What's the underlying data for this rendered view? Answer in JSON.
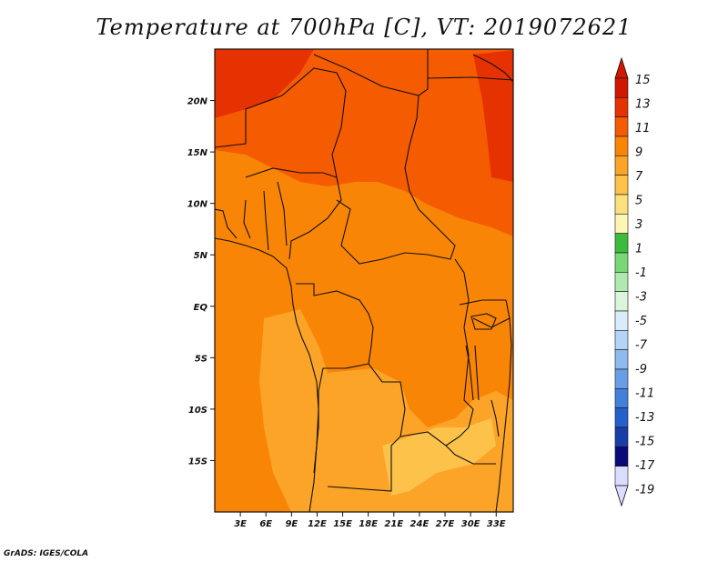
{
  "title": "Temperature at 700hPa [C], VT: 2019072621",
  "credit": "GrADS: IGES/COLA",
  "map": {
    "lon_range": [
      0,
      35
    ],
    "lat_range": [
      -20,
      25
    ],
    "lat_ticks": [
      {
        "value": 20,
        "label": "20N"
      },
      {
        "value": 15,
        "label": "15N"
      },
      {
        "value": 10,
        "label": "10N"
      },
      {
        "value": 5,
        "label": "5N"
      },
      {
        "value": 0,
        "label": "EQ"
      },
      {
        "value": -5,
        "label": "5S"
      },
      {
        "value": -10,
        "label": "10S"
      },
      {
        "value": -15,
        "label": "15S"
      }
    ],
    "lon_ticks": [
      {
        "value": 3,
        "label": "3E"
      },
      {
        "value": 6,
        "label": "6E"
      },
      {
        "value": 9,
        "label": "9E"
      },
      {
        "value": 12,
        "label": "12E"
      },
      {
        "value": 15,
        "label": "15E"
      },
      {
        "value": 18,
        "label": "18E"
      },
      {
        "value": 21,
        "label": "21E"
      },
      {
        "value": 24,
        "label": "24E"
      },
      {
        "value": 27,
        "label": "27E"
      },
      {
        "value": 30,
        "label": "30E"
      },
      {
        "value": 33,
        "label": "33E"
      }
    ]
  },
  "colorbar": {
    "labels": [
      "15",
      "13",
      "11",
      "9",
      "7",
      "5",
      "3",
      "1",
      "-1",
      "-3",
      "-5",
      "-7",
      "-9",
      "-11",
      "-13",
      "-15",
      "-17",
      "-19"
    ],
    "colors": [
      "#d01800",
      "#e63200",
      "#f55b00",
      "#f98506",
      "#fba428",
      "#fcc24a",
      "#fce07e",
      "#fdf6b5",
      "#3cbb3c",
      "#78d878",
      "#aeeaae",
      "#daf5da",
      "#d8ecfb",
      "#b4d4f7",
      "#8ebaf0",
      "#6a9de8",
      "#4280dc",
      "#2460cc",
      "#1a3ea8",
      "#0a0a78",
      "#dcdcff"
    ],
    "top_triangle_color": "#d01800",
    "bottom_triangle_color": "#dcdcff"
  },
  "fields": {
    "regions": [
      {
        "name": "sahara-northwest-hot",
        "color": "#e63200"
      },
      {
        "name": "sahel-warm",
        "color": "#f55b00"
      },
      {
        "name": "tropical-belt",
        "color": "#f98506"
      },
      {
        "name": "southern-plateau",
        "color": "#fba428"
      },
      {
        "name": "angola-cool-patch",
        "color": "#fcc24a"
      }
    ]
  }
}
